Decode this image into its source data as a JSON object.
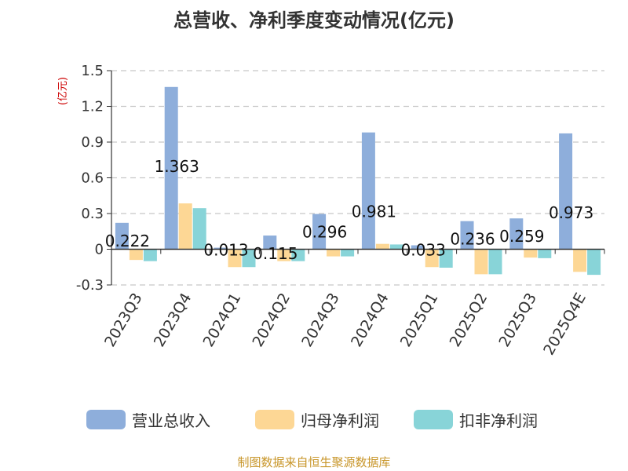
{
  "chart_data": {
    "type": "bar",
    "title": "总营收、净利季度变动情况(亿元)",
    "ylabel": "(亿元)",
    "xlabel": "",
    "categories": [
      "2023Q3",
      "2023Q4",
      "2024Q1",
      "2024Q2",
      "2024Q3",
      "2024Q4",
      "2025Q1",
      "2025Q2",
      "2025Q3",
      "2025Q4E"
    ],
    "ylim": [
      -0.3,
      1.5
    ],
    "yticks": [
      -0.3,
      0,
      0.3,
      0.6,
      0.9,
      1.2,
      1.5
    ],
    "ytick_labels": [
      "-0.3",
      "0",
      "0.3",
      "0.6",
      "0.9",
      "1.2",
      "1.5"
    ],
    "grid": true,
    "legend_position": "bottom",
    "series": [
      {
        "name": "营业总收入",
        "color": "#8eaedb",
        "values": [
          0.222,
          1.363,
          0.013,
          0.115,
          0.296,
          0.981,
          0.033,
          0.236,
          0.259,
          0.973
        ],
        "labels": [
          "0.222",
          "1.363",
          "0.013",
          "0.115",
          "0.296",
          "0.981",
          "0.033",
          "0.236",
          "0.259",
          "0.973"
        ]
      },
      {
        "name": "归母净利润",
        "color": "#fdd795",
        "values": [
          -0.09,
          0.385,
          -0.15,
          -0.1,
          -0.06,
          0.045,
          -0.15,
          -0.21,
          -0.07,
          -0.19
        ]
      },
      {
        "name": "扣非净利润",
        "color": "#88d4d8",
        "values": [
          -0.1,
          0.345,
          -0.15,
          -0.1,
          -0.06,
          0.04,
          -0.155,
          -0.21,
          -0.075,
          -0.215
        ]
      }
    ]
  },
  "source": "制图数据来自恒生聚源数据库"
}
